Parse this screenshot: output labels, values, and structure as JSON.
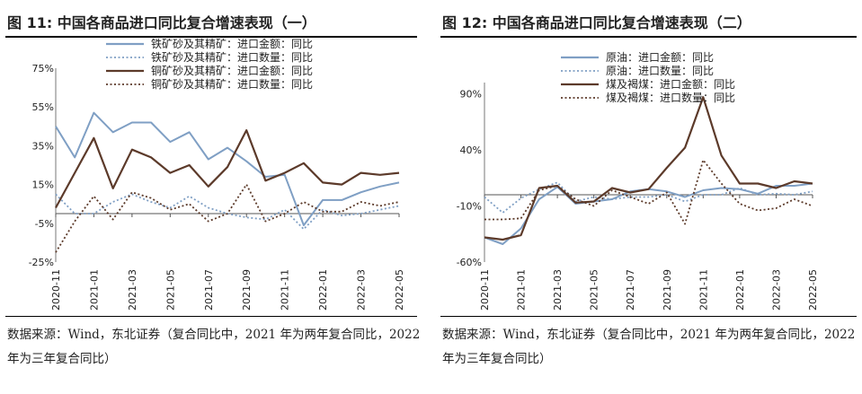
{
  "figures": [
    {
      "title": "图  11:  中国各商品进口同比复合增速表现（一）",
      "source": "数据来源：Wind，东北证券（复合同比中，2021 年为两年复合同比，2022 年为三年复合同比）"
    },
    {
      "title": "图  12:  中国各商品进口同比复合增速表现（二）",
      "source": "数据来源：Wind，东北证券（复合同比中，2021 年为两年复合同比，2022 年为三年复合同比）"
    }
  ],
  "chart_data": [
    {
      "type": "line",
      "x": [
        "2020-11",
        "2020-12",
        "2021-01",
        "2021-02",
        "2021-03",
        "2021-04",
        "2021-05",
        "2021-06",
        "2021-07",
        "2021-08",
        "2021-09",
        "2021-10",
        "2021-11",
        "2021-12",
        "2022-01",
        "2022-02",
        "2022-03",
        "2022-04",
        "2022-05"
      ],
      "x_tick_labels": [
        "2020-11",
        "2021-01",
        "2021-03",
        "2021-05",
        "2021-07",
        "2021-09",
        "2021-11",
        "2022-01",
        "2022-03",
        "2022-05"
      ],
      "ylim": [
        -25,
        75
      ],
      "y_ticks": [
        -25,
        -5,
        15,
        35,
        55,
        75
      ],
      "y_tick_labels": [
        "-25%",
        "-5%",
        "15%",
        "35%",
        "55%",
        "75%"
      ],
      "legend_position": "top",
      "series": [
        {
          "name": "铁矿砂及其精矿：进口金额：同比",
          "color": "#7f9fc4",
          "style": "solid",
          "values": [
            45,
            29,
            52,
            42,
            47,
            47,
            37,
            42,
            28,
            34,
            27,
            19,
            20,
            -6,
            7,
            7,
            11,
            14,
            16
          ]
        },
        {
          "name": "铁矿砂及其精矿：进口数量：同比",
          "color": "#7f9fc4",
          "style": "dotted",
          "values": [
            10,
            0,
            0,
            6,
            10,
            6,
            3,
            9,
            3,
            0,
            -2,
            -3,
            2,
            -8,
            2,
            -1,
            0,
            2,
            4
          ]
        },
        {
          "name": "铜矿砂及其精矿：进口金额：同比",
          "color": "#5c3a2a",
          "style": "solid",
          "values": [
            3,
            21,
            39,
            13,
            33,
            29,
            21,
            25,
            14,
            24,
            43,
            17,
            21,
            26,
            16,
            15,
            21,
            20,
            21
          ]
        },
        {
          "name": "铜矿砂及其精矿：进口数量：同比",
          "color": "#5c3a2a",
          "style": "dotted",
          "values": [
            -20,
            -4,
            9,
            -3,
            11,
            8,
            2,
            5,
            -4,
            0,
            15,
            -4,
            0,
            6,
            1,
            1,
            6,
            4,
            6
          ]
        }
      ]
    },
    {
      "type": "line",
      "x": [
        "2020-11",
        "2020-12",
        "2021-01",
        "2021-02",
        "2021-03",
        "2021-04",
        "2021-05",
        "2021-06",
        "2021-07",
        "2021-08",
        "2021-09",
        "2021-10",
        "2021-11",
        "2021-12",
        "2022-01",
        "2022-02",
        "2022-03",
        "2022-04",
        "2022-05"
      ],
      "x_tick_labels": [
        "2020-11",
        "2021-01",
        "2021-03",
        "2021-05",
        "2021-07",
        "2021-09",
        "2021-11",
        "2022-01",
        "2022-03",
        "2022-05"
      ],
      "ylim": [
        -60,
        100
      ],
      "y_ticks": [
        -60,
        -10,
        40,
        90
      ],
      "y_tick_labels": [
        "-60%",
        "-10%",
        "40%",
        "90%"
      ],
      "legend_position": "top",
      "series": [
        {
          "name": "原油：进口金额：同比",
          "color": "#7f9fc4",
          "style": "solid",
          "values": [
            -38,
            -44,
            -30,
            -4,
            7,
            -8,
            -6,
            -4,
            3,
            5,
            3,
            -2,
            4,
            6,
            5,
            1,
            8,
            8,
            10
          ]
        },
        {
          "name": "原油：进口数量：同比",
          "color": "#7f9fc4",
          "style": "dotted",
          "values": [
            -2,
            -16,
            -3,
            5,
            11,
            -6,
            -2,
            -4,
            -2,
            -2,
            0,
            -6,
            0,
            0,
            6,
            0,
            1,
            0,
            3
          ]
        },
        {
          "name": "煤及褐煤：进口金额：同比",
          "color": "#5c3a2a",
          "style": "solid",
          "values": [
            -38,
            -40,
            -36,
            6,
            8,
            -7,
            -6,
            6,
            2,
            5,
            24,
            42,
            87,
            35,
            10,
            10,
            6,
            12,
            10
          ]
        },
        {
          "name": "煤及褐煤：进口数量：同比",
          "color": "#5c3a2a",
          "style": "dotted",
          "values": [
            -22,
            -22,
            -21,
            4,
            8,
            -4,
            -10,
            4,
            -2,
            -8,
            2,
            -26,
            31,
            10,
            -8,
            -14,
            -12,
            -4,
            -10
          ]
        }
      ]
    }
  ]
}
